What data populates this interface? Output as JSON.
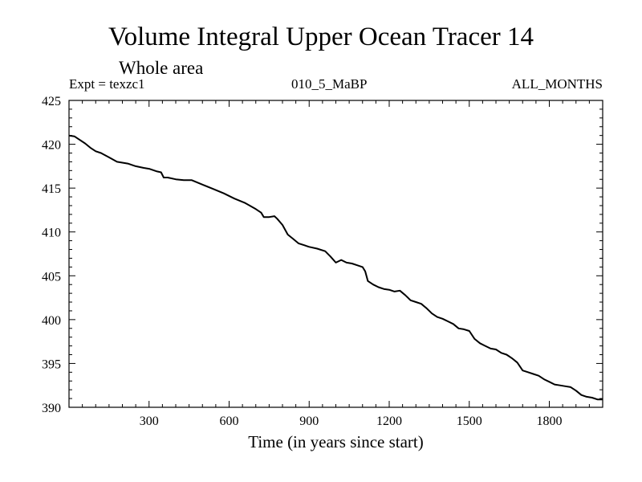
{
  "header": {
    "title": "Volume Integral Upper Ocean Tracer 14",
    "subtitle": "Whole area",
    "experiment": "Expt = texzc1",
    "run": "010_5_MaBP",
    "months": "ALL_MONTHS"
  },
  "chart_data": {
    "type": "line",
    "title": "Volume Integral Upper Ocean Tracer 14",
    "subtitle": "Whole area",
    "xlabel": "Time (in years since start)",
    "ylabel": "",
    "xlim": [
      0,
      2000
    ],
    "ylim": [
      390,
      425
    ],
    "xticks": [
      300,
      600,
      900,
      1200,
      1500,
      1800
    ],
    "yticks": [
      390,
      395,
      400,
      405,
      410,
      415,
      420,
      425
    ],
    "grid": false,
    "color": "#000000",
    "series": [
      {
        "name": "Tracer 14",
        "x": [
          0,
          20,
          40,
          60,
          80,
          100,
          120,
          150,
          180,
          200,
          220,
          250,
          280,
          300,
          330,
          345,
          355,
          370,
          400,
          430,
          460,
          500,
          540,
          580,
          620,
          660,
          700,
          720,
          730,
          750,
          770,
          780,
          800,
          820,
          840,
          860,
          880,
          900,
          930,
          960,
          980,
          1000,
          1020,
          1040,
          1060,
          1080,
          1100,
          1110,
          1120,
          1140,
          1160,
          1180,
          1200,
          1220,
          1240,
          1260,
          1280,
          1300,
          1320,
          1340,
          1360,
          1380,
          1400,
          1420,
          1440,
          1460,
          1480,
          1500,
          1520,
          1540,
          1560,
          1580,
          1600,
          1620,
          1640,
          1660,
          1680,
          1700,
          1720,
          1740,
          1760,
          1780,
          1800,
          1820,
          1840,
          1860,
          1880,
          1900,
          1920,
          1940,
          1960,
          1980,
          2000
        ],
        "values": [
          421.0,
          420.9,
          420.5,
          420.1,
          419.6,
          419.2,
          419.0,
          418.5,
          418.0,
          417.9,
          417.8,
          417.5,
          417.3,
          417.2,
          416.9,
          416.8,
          416.2,
          416.2,
          416.0,
          415.9,
          415.9,
          415.4,
          414.9,
          414.4,
          413.8,
          413.3,
          412.6,
          412.2,
          411.7,
          411.7,
          411.8,
          411.5,
          410.8,
          409.7,
          409.2,
          408.7,
          408.5,
          408.3,
          408.1,
          407.8,
          407.2,
          406.5,
          406.8,
          406.5,
          406.4,
          406.2,
          406.0,
          405.5,
          404.4,
          404.0,
          403.7,
          403.5,
          403.4,
          403.2,
          403.3,
          402.8,
          402.2,
          402.0,
          401.8,
          401.3,
          400.7,
          400.3,
          400.1,
          399.8,
          399.5,
          399.0,
          398.9,
          398.7,
          397.8,
          397.3,
          397.0,
          396.7,
          396.6,
          396.2,
          396.0,
          395.6,
          395.1,
          394.2,
          394.0,
          393.8,
          393.6,
          393.2,
          392.9,
          392.6,
          392.5,
          392.4,
          392.3,
          391.9,
          391.4,
          391.2,
          391.1,
          390.9,
          390.9
        ]
      }
    ]
  }
}
